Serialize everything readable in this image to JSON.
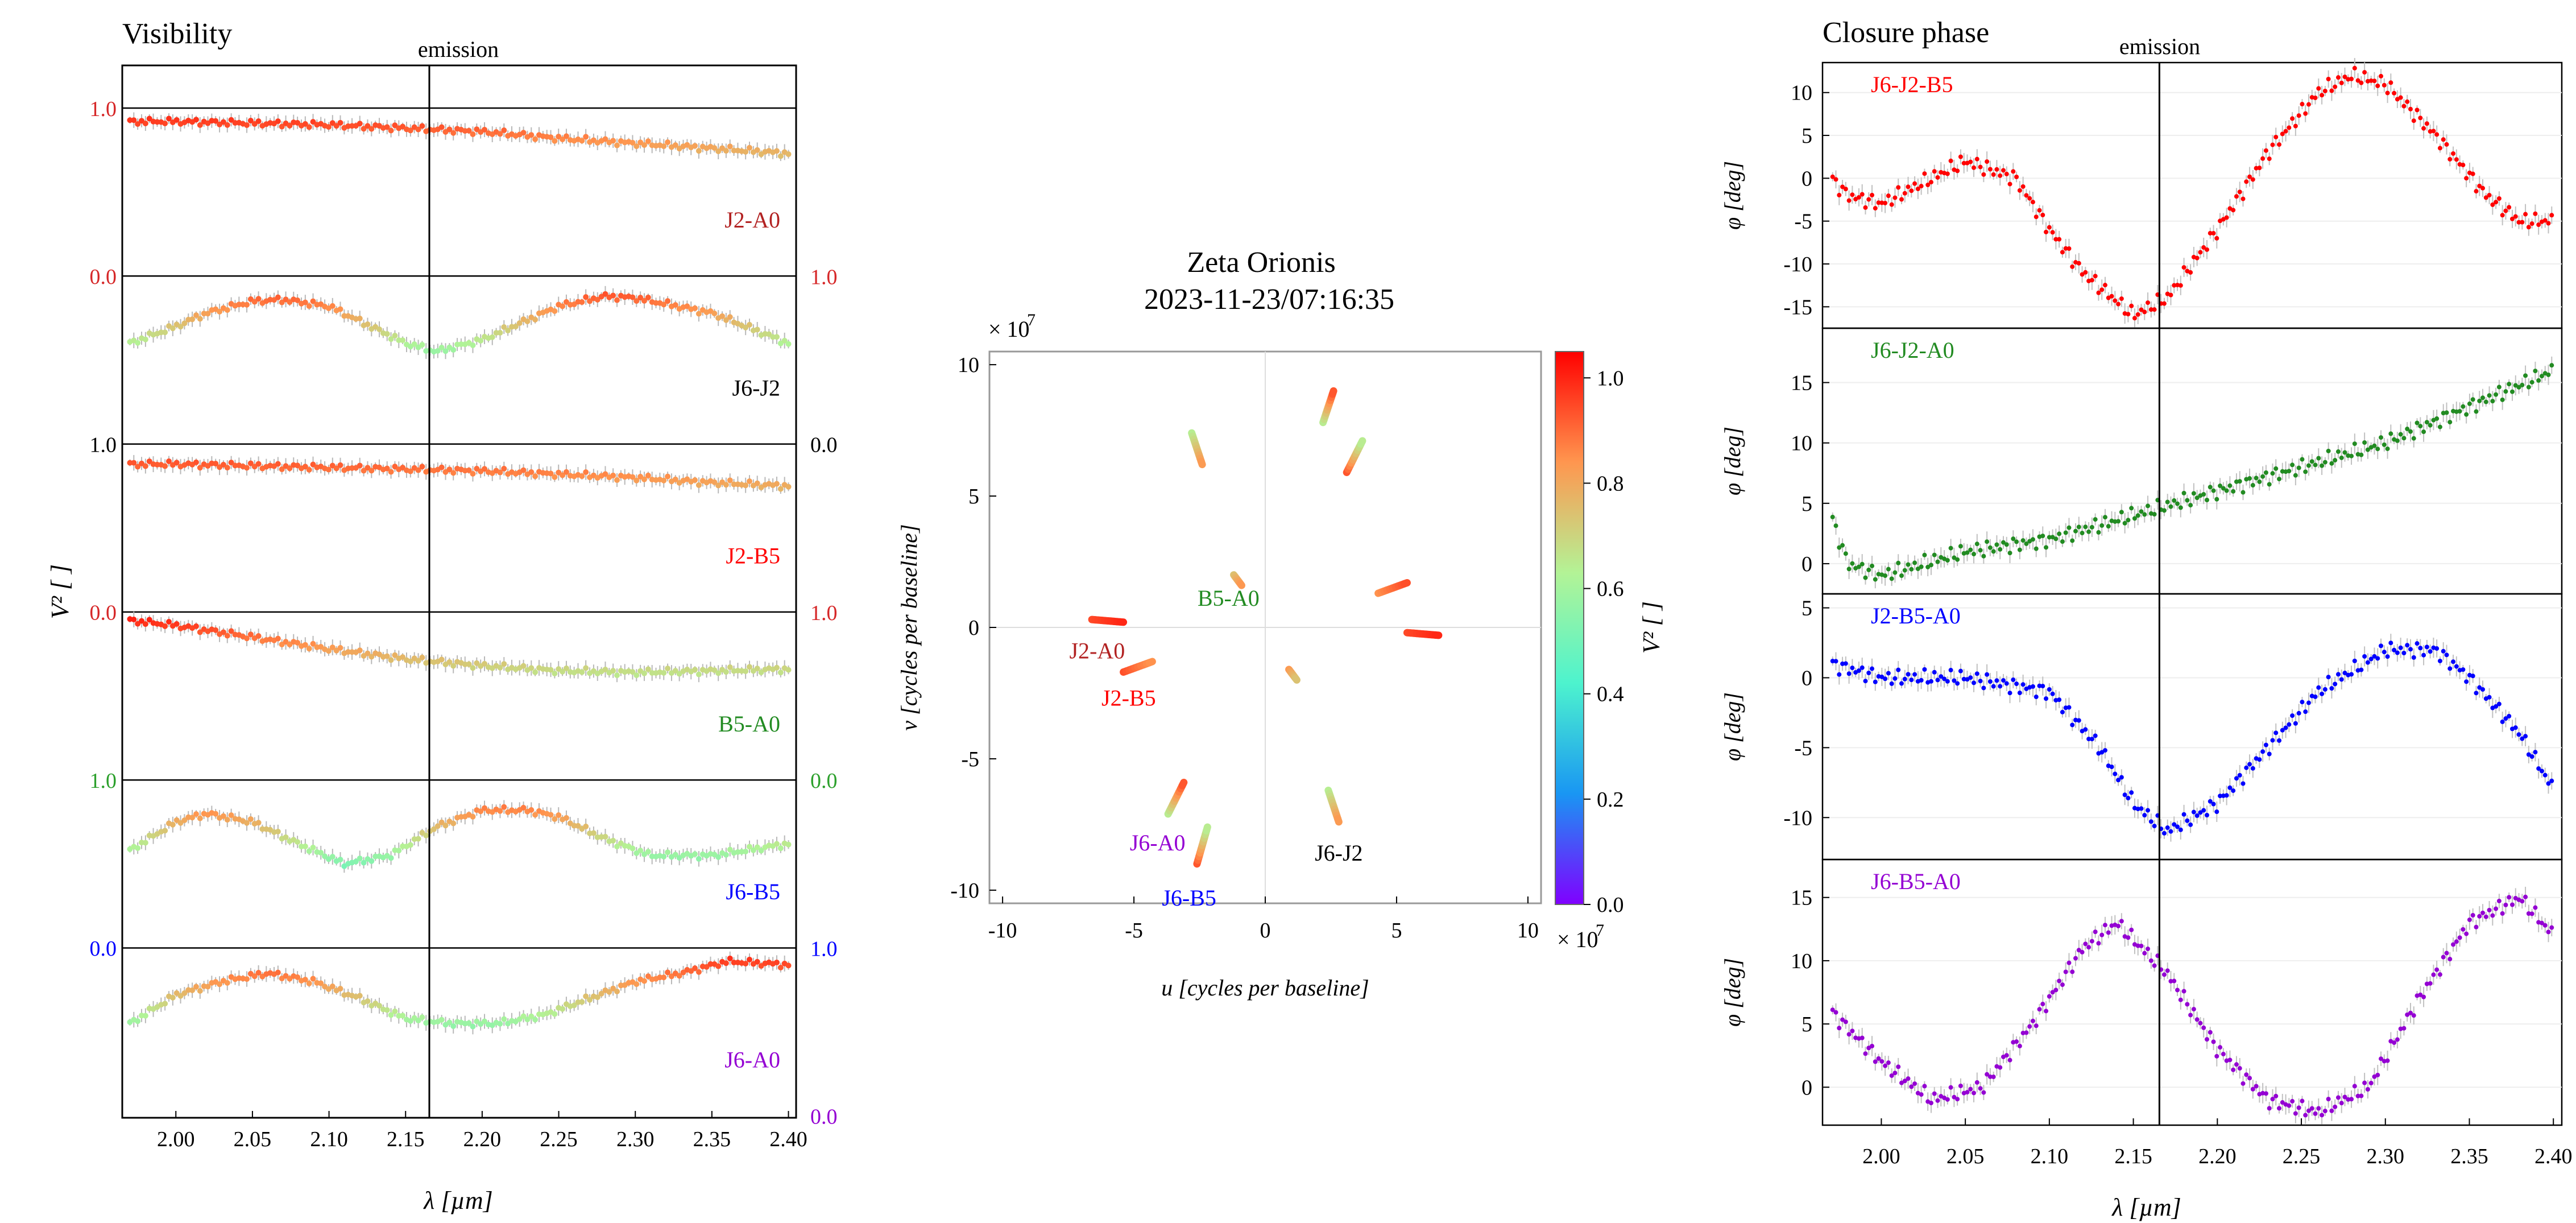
{
  "chart_data": [
    {
      "type": "line",
      "title": "Visibility",
      "annotation": "emission",
      "annotation_x": 2.1655,
      "xlabel": "λ [µm]",
      "ylabel": "V² [ ]",
      "xlim": [
        1.965,
        2.405
      ],
      "x_ticks": [
        "2.00",
        "2.05",
        "2.10",
        "2.15",
        "2.20",
        "2.25",
        "2.30",
        "2.35",
        "2.40"
      ],
      "x_tick_values": [
        2.0,
        2.05,
        2.1,
        2.15,
        2.2,
        2.25,
        2.3,
        2.35,
        2.4
      ],
      "panel_ylim": [
        0.0,
        1.0
      ],
      "tick_labels": [
        "1.0",
        "0.0"
      ],
      "axis_tick_colors": [
        "#d62728",
        "#d62728",
        "#000000",
        "#d62728",
        "#2ca02c",
        "#0000ff",
        "#9400d3"
      ],
      "colorscale": "rainbow",
      "series": [
        {
          "name": "J2-A0",
          "color": "#b22222",
          "x": [
            1.97,
            2.0,
            2.05,
            2.1,
            2.15,
            2.2,
            2.25,
            2.3,
            2.35,
            2.4
          ],
          "values": [
            0.92,
            0.92,
            0.91,
            0.9,
            0.88,
            0.86,
            0.82,
            0.79,
            0.76,
            0.73
          ]
        },
        {
          "name": "J6-J2",
          "color": "#000000",
          "x": [
            1.97,
            2.0,
            2.02,
            2.05,
            2.07,
            2.1,
            2.15,
            2.17,
            2.2,
            2.25,
            2.28,
            2.3,
            2.35,
            2.4
          ],
          "values": [
            0.6,
            0.7,
            0.78,
            0.85,
            0.86,
            0.82,
            0.6,
            0.55,
            0.62,
            0.82,
            0.88,
            0.87,
            0.78,
            0.6
          ]
        },
        {
          "name": "J2-B5",
          "color": "#ff0000",
          "x": [
            1.97,
            2.0,
            2.05,
            2.1,
            2.15,
            2.2,
            2.25,
            2.3,
            2.35,
            2.4
          ],
          "values": [
            0.88,
            0.88,
            0.87,
            0.86,
            0.85,
            0.84,
            0.82,
            0.8,
            0.77,
            0.75
          ]
        },
        {
          "name": "B5-A0",
          "color": "#228b22",
          "x": [
            1.97,
            2.0,
            2.05,
            2.1,
            2.15,
            2.2,
            2.25,
            2.3,
            2.35,
            2.4
          ],
          "values": [
            0.95,
            0.92,
            0.85,
            0.78,
            0.72,
            0.68,
            0.65,
            0.64,
            0.65,
            0.66
          ]
        },
        {
          "name": "J6-B5",
          "color": "#0000ff",
          "x": [
            1.97,
            2.0,
            2.02,
            2.05,
            2.08,
            2.11,
            2.14,
            2.17,
            2.2,
            2.23,
            2.25,
            2.28,
            2.31,
            2.35,
            2.4
          ],
          "values": [
            0.58,
            0.75,
            0.8,
            0.75,
            0.62,
            0.5,
            0.55,
            0.72,
            0.82,
            0.82,
            0.78,
            0.65,
            0.55,
            0.55,
            0.62
          ]
        },
        {
          "name": "J6-A0",
          "color": "#9400d3",
          "x": [
            1.97,
            2.0,
            2.03,
            2.06,
            2.09,
            2.12,
            2.15,
            2.18,
            2.21,
            2.24,
            2.27,
            2.3,
            2.33,
            2.36,
            2.4
          ],
          "values": [
            0.55,
            0.72,
            0.8,
            0.85,
            0.8,
            0.7,
            0.58,
            0.55,
            0.55,
            0.6,
            0.7,
            0.8,
            0.85,
            0.92,
            0.9
          ]
        }
      ]
    },
    {
      "type": "scatter",
      "title": "Zeta Orionis",
      "subtitle": "2023-11-23/07:16:35",
      "xlabel": "u [cycles per baseline]",
      "ylabel": "v [cycles per baseline]",
      "multiplier": "× 10",
      "multiplier_exp": "7",
      "xlim": [
        -10.5,
        10.5
      ],
      "ylim": [
        -10.5,
        10.5
      ],
      "x_ticks": [
        "-10",
        "-5",
        "0",
        "5",
        "10"
      ],
      "x_tick_values": [
        -10,
        -5,
        0,
        5,
        10
      ],
      "y_ticks": [
        "10",
        "5",
        "0",
        "-5",
        "-10"
      ],
      "y_tick_values": [
        10,
        5,
        0,
        -5,
        -10
      ],
      "colorbar_label": "V² [ ]",
      "colorbar_ticks": [
        "1.0",
        "0.8",
        "0.6",
        "0.4",
        "0.2",
        "0.0"
      ],
      "colorbar_tick_values": [
        1.0,
        0.8,
        0.6,
        0.4,
        0.2,
        0.0
      ],
      "colorbar_range": [
        0.0,
        1.05
      ],
      "tracks": [
        {
          "u1": 2.2,
          "v1": 7.8,
          "u2": 2.6,
          "v2": 9.0,
          "c1": 0.6,
          "c2": 0.9
        },
        {
          "u1": -2.8,
          "v1": 7.4,
          "u2": -2.4,
          "v2": 6.2,
          "c1": 0.6,
          "c2": 0.8
        },
        {
          "u1": 3.1,
          "v1": 5.9,
          "u2": 3.7,
          "v2": 7.1,
          "c1": 0.9,
          "c2": 0.6
        },
        {
          "u1": 4.3,
          "v1": 1.3,
          "u2": 5.4,
          "v2": 1.7,
          "c1": 0.8,
          "c2": 0.9
        },
        {
          "u1": -1.2,
          "v1": 2.0,
          "u2": -0.9,
          "v2": 1.6,
          "c1": 0.7,
          "c2": 0.8
        },
        {
          "u1": 5.4,
          "v1": -0.2,
          "u2": 6.6,
          "v2": -0.3,
          "c1": 0.9,
          "c2": 0.95
        },
        {
          "u1": -6.6,
          "v1": 0.3,
          "u2": -5.4,
          "v2": 0.2,
          "c1": 0.9,
          "c2": 0.95
        },
        {
          "u1": -5.4,
          "v1": -1.7,
          "u2": -4.3,
          "v2": -1.3,
          "c1": 0.9,
          "c2": 0.8
        },
        {
          "u1": 0.9,
          "v1": -1.6,
          "u2": 1.2,
          "v2": -2.0,
          "c1": 0.8,
          "c2": 0.7
        },
        {
          "u1": 2.4,
          "v1": -6.2,
          "u2": 2.8,
          "v2": -7.4,
          "c1": 0.6,
          "c2": 0.8
        },
        {
          "u1": -3.7,
          "v1": -7.1,
          "u2": -3.1,
          "v2": -5.9,
          "c1": 0.6,
          "c2": 0.9
        },
        {
          "u1": -2.6,
          "v1": -9.0,
          "u2": -2.2,
          "v2": -7.6,
          "c1": 0.9,
          "c2": 0.6
        }
      ],
      "labels": [
        {
          "text": "B5-A0",
          "u": -1.4,
          "v": 1.1,
          "color": "#228b22"
        },
        {
          "text": "J2-A0",
          "u": -6.4,
          "v": -0.9,
          "color": "#b22222"
        },
        {
          "text": "J2-B5",
          "u": -5.2,
          "v": -2.7,
          "color": "#ff0000"
        },
        {
          "text": "J6-A0",
          "u": -4.1,
          "v": -8.2,
          "color": "#9400d3"
        },
        {
          "text": "J6-B5",
          "u": -2.9,
          "v": -10.3,
          "color": "#0000ff"
        },
        {
          "text": "J6-J2",
          "u": 2.8,
          "v": -8.6,
          "color": "#000000"
        }
      ]
    },
    {
      "type": "line",
      "title": "Closure phase",
      "annotation": "emission",
      "annotation_x": 2.1655,
      "xlabel": "λ [µm]",
      "ylabel": "φ [deg]",
      "xlim": [
        1.965,
        2.405
      ],
      "x_ticks": [
        "2.00",
        "2.05",
        "2.10",
        "2.15",
        "2.20",
        "2.25",
        "2.30",
        "2.35",
        "2.40"
      ],
      "x_tick_values": [
        2.0,
        2.05,
        2.1,
        2.15,
        2.2,
        2.25,
        2.3,
        2.35,
        2.4
      ],
      "panels": [
        {
          "name": "J6-J2-B5",
          "color": "#ff0000",
          "ylim": [
            -17.5,
            13.5
          ],
          "y_ticks": [
            "10",
            "5",
            "0",
            "-5",
            "-10",
            "-15"
          ],
          "y_tick_values": [
            10,
            5,
            0,
            -5,
            -10,
            -15
          ],
          "x": [
            1.97,
            1.98,
            2.0,
            2.02,
            2.05,
            2.08,
            2.1,
            2.12,
            2.15,
            2.17,
            2.2,
            2.23,
            2.26,
            2.28,
            2.3,
            2.33,
            2.36,
            2.38,
            2.4
          ],
          "values": [
            0,
            -2,
            -3,
            -1,
            2,
            0,
            -6,
            -11,
            -16,
            -14,
            -6,
            3,
            10,
            12,
            11,
            5,
            -2,
            -5,
            -5
          ]
        },
        {
          "name": "J6-J2-A0",
          "color": "#228b22",
          "ylim": [
            -2.5,
            19.5
          ],
          "y_ticks": [
            "15",
            "10",
            "5",
            "0"
          ],
          "y_tick_values": [
            15,
            10,
            5,
            0
          ],
          "x": [
            1.97,
            1.98,
            2.0,
            2.05,
            2.1,
            2.15,
            2.2,
            2.25,
            2.3,
            2.35,
            2.4
          ],
          "values": [
            4,
            0,
            -1,
            1,
            2,
            4,
            6,
            8,
            10,
            13,
            16
          ]
        },
        {
          "name": "J2-B5-A0",
          "color": "#0000ff",
          "ylim": [
            -13,
            6
          ],
          "y_ticks": [
            "5",
            "0",
            "-5",
            "-10"
          ],
          "y_tick_values": [
            5,
            0,
            -5,
            -10
          ],
          "x": [
            1.97,
            2.0,
            2.05,
            2.1,
            2.13,
            2.15,
            2.17,
            2.2,
            2.23,
            2.26,
            2.3,
            2.33,
            2.35,
            2.38,
            2.4
          ],
          "values": [
            1,
            0,
            0,
            -1,
            -5,
            -9,
            -11,
            -9,
            -5,
            -1,
            2,
            2,
            0,
            -4,
            -8
          ]
        },
        {
          "name": "J6-B5-A0",
          "color": "#9400d3",
          "ylim": [
            -3,
            18
          ],
          "y_ticks": [
            "15",
            "10",
            "5",
            "0"
          ],
          "y_tick_values": [
            15,
            10,
            5,
            0
          ],
          "x": [
            1.97,
            2.0,
            2.03,
            2.06,
            2.09,
            2.12,
            2.14,
            2.17,
            2.2,
            2.23,
            2.26,
            2.29,
            2.32,
            2.35,
            2.38,
            2.4
          ],
          "values": [
            6,
            2,
            -1,
            0,
            5,
            11,
            13,
            9,
            3,
            -1,
            -2,
            0,
            7,
            13,
            15,
            12
          ]
        }
      ]
    }
  ]
}
